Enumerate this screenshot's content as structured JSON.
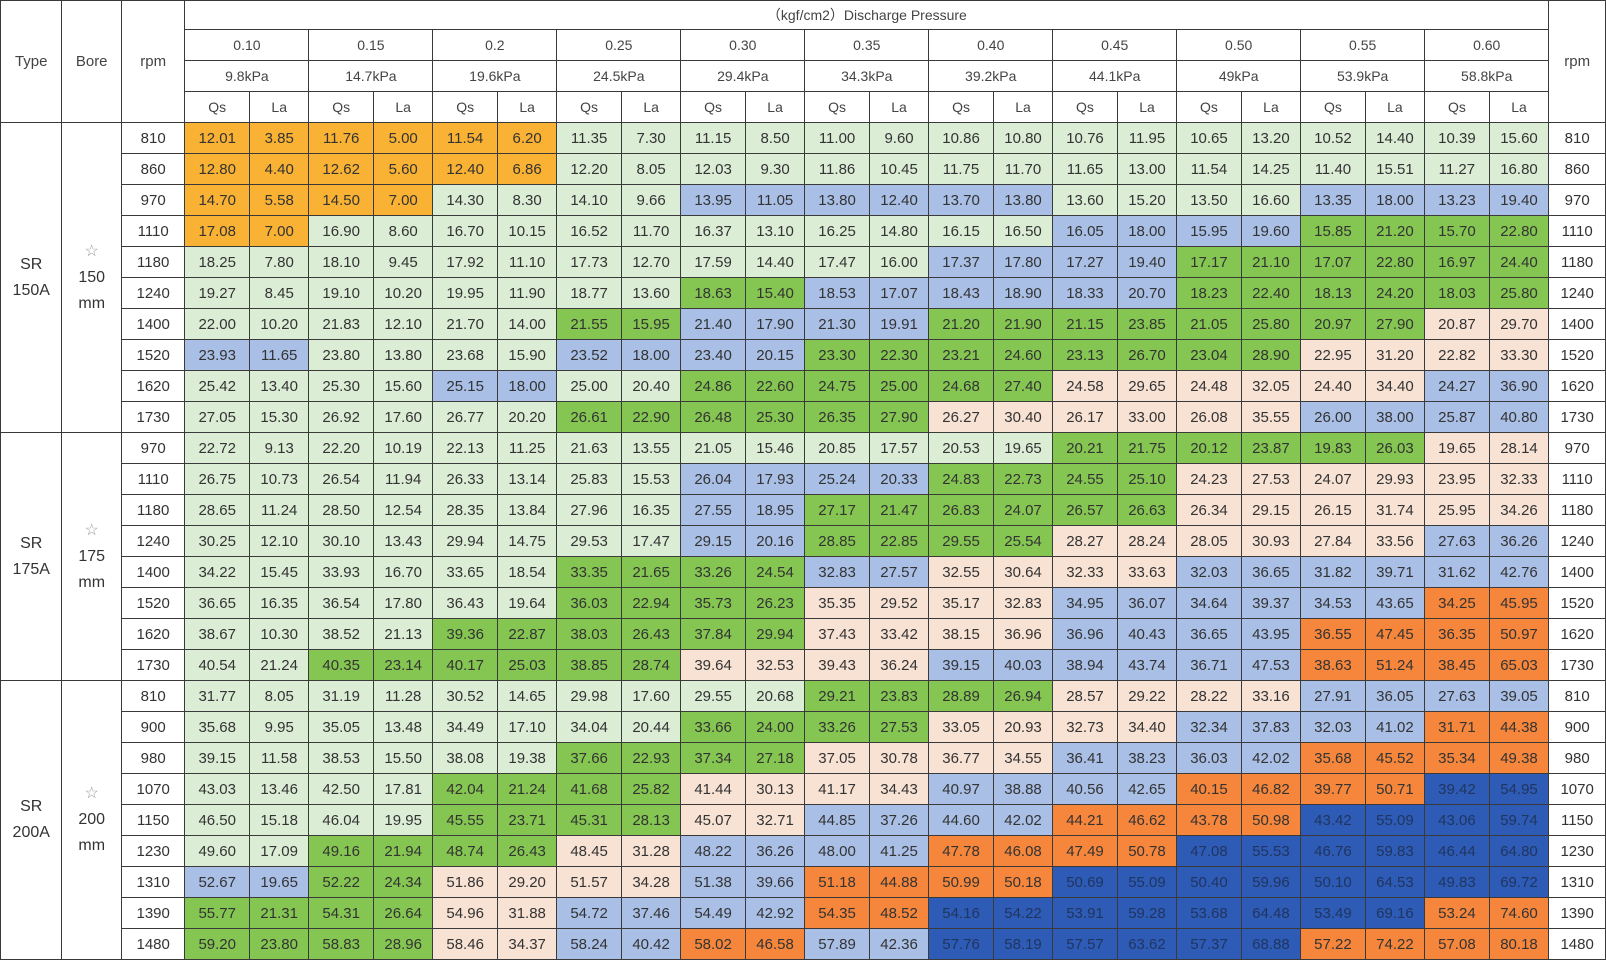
{
  "header": {
    "type_label": "Type",
    "bore_label": "Bore",
    "rpm_label": "rpm",
    "rpm_right_label": "rpm",
    "discharge_label": "（kgf/cm2）Discharge Pressure",
    "qs_label": "Qs",
    "la_label": "La",
    "pressures": [
      {
        "kgf": "0.10",
        "kpa": "9.8kPa"
      },
      {
        "kgf": "0.15",
        "kpa": "14.7kPa"
      },
      {
        "kgf": "0.2",
        "kpa": "19.6kPa"
      },
      {
        "kgf": "0.25",
        "kpa": "24.5kPa"
      },
      {
        "kgf": "0.30",
        "kpa": "29.4kPa"
      },
      {
        "kgf": "0.35",
        "kpa": "34.3kPa"
      },
      {
        "kgf": "0.40",
        "kpa": "39.2kPa"
      },
      {
        "kgf": "0.45",
        "kpa": "44.1kPa"
      },
      {
        "kgf": "0.50",
        "kpa": "49kPa"
      },
      {
        "kgf": "0.55",
        "kpa": "53.9kPa"
      },
      {
        "kgf": "0.60",
        "kpa": "58.8kPa"
      }
    ]
  },
  "colors": {
    "Y": "#f9b233",
    "L": "#dcedd6",
    "G": "#85c652",
    "B": "#a9bfe6",
    "P": "#f8e2d4",
    "O": "#f5863c",
    "D": "#2e5bb6"
  },
  "groups": [
    {
      "type": [
        "SR",
        "150A"
      ],
      "star": "☆",
      "bore": [
        "150",
        "mm"
      ],
      "rows": [
        {
          "rpm": "810",
          "c": "YYYYYYLLLLLLLLLLLLLLLL",
          "v": [
            "12.01",
            "3.85",
            "11.76",
            "5.00",
            "11.54",
            "6.20",
            "11.35",
            "7.30",
            "11.15",
            "8.50",
            "11.00",
            "9.60",
            "10.86",
            "10.80",
            "10.76",
            "11.95",
            "10.65",
            "13.20",
            "10.52",
            "14.40",
            "10.39",
            "15.60"
          ]
        },
        {
          "rpm": "860",
          "c": "YYYYYYLLLLLLLLLLLLLLLL",
          "v": [
            "12.80",
            "4.40",
            "12.62",
            "5.60",
            "12.40",
            "6.86",
            "12.20",
            "8.05",
            "12.03",
            "9.30",
            "11.86",
            "10.45",
            "11.75",
            "11.70",
            "11.65",
            "13.00",
            "11.54",
            "14.25",
            "11.40",
            "15.51",
            "11.27",
            "16.80"
          ]
        },
        {
          "rpm": "970",
          "c": "YYYYLLLLBBBBBBLLLLBBBB",
          "v": [
            "14.70",
            "5.58",
            "14.50",
            "7.00",
            "14.30",
            "8.30",
            "14.10",
            "9.66",
            "13.95",
            "11.05",
            "13.80",
            "12.40",
            "13.70",
            "13.80",
            "13.60",
            "15.20",
            "13.50",
            "16.60",
            "13.35",
            "18.00",
            "13.23",
            "19.40"
          ]
        },
        {
          "rpm": "1110",
          "c": "YYLLLLLLLLLLLLBBBBGGGG",
          "v": [
            "17.08",
            "7.00",
            "16.90",
            "8.60",
            "16.70",
            "10.15",
            "16.52",
            "11.70",
            "16.37",
            "13.10",
            "16.25",
            "14.80",
            "16.15",
            "16.50",
            "16.05",
            "18.00",
            "15.95",
            "19.60",
            "15.85",
            "21.20",
            "15.70",
            "22.80"
          ]
        },
        {
          "rpm": "1180",
          "c": "LLLLLLLLLLLLBBBBGGGGGG",
          "v": [
            "18.25",
            "7.80",
            "18.10",
            "9.45",
            "17.92",
            "11.10",
            "17.73",
            "12.70",
            "17.59",
            "14.40",
            "17.47",
            "16.00",
            "17.37",
            "17.80",
            "17.27",
            "19.40",
            "17.17",
            "21.10",
            "17.07",
            "22.80",
            "16.97",
            "24.40"
          ]
        },
        {
          "rpm": "1240",
          "c": "LLLLLLLLGGBBBBBBGGGGGG",
          "v": [
            "19.27",
            "8.45",
            "19.10",
            "10.20",
            "19.95",
            "11.90",
            "18.77",
            "13.60",
            "18.63",
            "15.40",
            "18.53",
            "17.07",
            "18.43",
            "18.90",
            "18.33",
            "20.70",
            "18.23",
            "22.40",
            "18.13",
            "24.20",
            "18.03",
            "25.80"
          ]
        },
        {
          "rpm": "1400",
          "c": "LLLLLLGGBBBBGGGGGGGGPP",
          "v": [
            "22.00",
            "10.20",
            "21.83",
            "12.10",
            "21.70",
            "14.00",
            "21.55",
            "15.95",
            "21.40",
            "17.90",
            "21.30",
            "19.91",
            "21.20",
            "21.90",
            "21.15",
            "23.85",
            "21.05",
            "25.80",
            "20.97",
            "27.90",
            "20.87",
            "29.70"
          ]
        },
        {
          "rpm": "1520",
          "c": "BBLLLLBBBBGGGGGGGGPPPP",
          "v": [
            "23.93",
            "11.65",
            "23.80",
            "13.80",
            "23.68",
            "15.90",
            "23.52",
            "18.00",
            "23.40",
            "20.15",
            "23.30",
            "22.30",
            "23.21",
            "24.60",
            "23.13",
            "26.70",
            "23.04",
            "28.90",
            "22.95",
            "31.20",
            "22.82",
            "33.30"
          ]
        },
        {
          "rpm": "1620",
          "c": "LLLLBBLLGGGGGGPPPPPPBB",
          "v": [
            "25.42",
            "13.40",
            "25.30",
            "15.60",
            "25.15",
            "18.00",
            "25.00",
            "20.40",
            "24.86",
            "22.60",
            "24.75",
            "25.00",
            "24.68",
            "27.40",
            "24.58",
            "29.65",
            "24.48",
            "32.05",
            "24.40",
            "34.40",
            "24.27",
            "36.90"
          ]
        },
        {
          "rpm": "1730",
          "c": "LLLLLLGGGGGGPPPPPPBBBB",
          "v": [
            "27.05",
            "15.30",
            "26.92",
            "17.60",
            "26.77",
            "20.20",
            "26.61",
            "22.90",
            "26.48",
            "25.30",
            "26.35",
            "27.90",
            "26.27",
            "30.40",
            "26.17",
            "33.00",
            "26.08",
            "35.55",
            "26.00",
            "38.00",
            "25.87",
            "40.80"
          ]
        }
      ]
    },
    {
      "type": [
        "SR",
        "175A"
      ],
      "star": "☆",
      "bore": [
        "175",
        "mm"
      ],
      "rows": [
        {
          "rpm": "970",
          "c": "LLLLLLLLLLLLLLGGGGGGPP",
          "v": [
            "22.72",
            "9.13",
            "22.20",
            "10.19",
            "22.13",
            "11.25",
            "21.63",
            "13.55",
            "21.05",
            "15.46",
            "20.85",
            "17.57",
            "20.53",
            "19.65",
            "20.21",
            "21.75",
            "20.12",
            "23.87",
            "19.83",
            "26.03",
            "19.65",
            "28.14"
          ]
        },
        {
          "rpm": "1110",
          "c": "LLLLLLLLBBBBGGGGPPPPPP",
          "v": [
            "26.75",
            "10.73",
            "26.54",
            "11.94",
            "26.33",
            "13.14",
            "25.83",
            "15.53",
            "26.04",
            "17.93",
            "25.24",
            "20.33",
            "24.83",
            "22.73",
            "24.55",
            "25.10",
            "24.23",
            "27.53",
            "24.07",
            "29.93",
            "23.95",
            "32.33"
          ]
        },
        {
          "rpm": "1180",
          "c": "LLLLLLLLBBGGGGGGPPPPPP",
          "v": [
            "28.65",
            "11.24",
            "28.50",
            "12.54",
            "28.35",
            "13.84",
            "27.96",
            "16.35",
            "27.55",
            "18.95",
            "27.17",
            "21.47",
            "26.83",
            "24.07",
            "26.57",
            "26.63",
            "26.34",
            "29.15",
            "26.15",
            "31.74",
            "25.95",
            "34.26"
          ]
        },
        {
          "rpm": "1240",
          "c": "LLLLLLLLBBGGGGPPPPPPBB",
          "v": [
            "30.25",
            "12.10",
            "30.10",
            "13.43",
            "29.94",
            "14.75",
            "29.53",
            "17.47",
            "29.15",
            "20.16",
            "28.85",
            "22.85",
            "29.55",
            "25.54",
            "28.27",
            "28.24",
            "28.05",
            "30.93",
            "27.84",
            "33.56",
            "27.63",
            "36.26"
          ]
        },
        {
          "rpm": "1400",
          "c": "LLLLLLGGGGBBPPPPBBBBBB",
          "v": [
            "34.22",
            "15.45",
            "33.93",
            "16.70",
            "33.65",
            "18.54",
            "33.35",
            "21.65",
            "33.26",
            "24.54",
            "32.83",
            "27.57",
            "32.55",
            "30.64",
            "32.33",
            "33.63",
            "32.03",
            "36.65",
            "31.82",
            "39.71",
            "31.62",
            "42.76"
          ]
        },
        {
          "rpm": "1520",
          "c": "LLLLLLGGGGPPPPBBBBBBOO",
          "v": [
            "36.65",
            "16.35",
            "36.54",
            "17.80",
            "36.43",
            "19.64",
            "36.03",
            "22.94",
            "35.73",
            "26.23",
            "35.35",
            "29.52",
            "35.17",
            "32.83",
            "34.95",
            "36.07",
            "34.64",
            "39.37",
            "34.53",
            "43.65",
            "34.25",
            "45.95"
          ]
        },
        {
          "rpm": "1620",
          "c": "LLLLGGGGGGPPPPBBBBOOOO",
          "v": [
            "38.67",
            "10.30",
            "38.52",
            "21.13",
            "39.36",
            "22.87",
            "38.03",
            "26.43",
            "37.84",
            "29.94",
            "37.43",
            "33.42",
            "38.15",
            "36.96",
            "36.96",
            "40.43",
            "36.65",
            "43.95",
            "36.55",
            "47.45",
            "36.35",
            "50.97"
          ]
        },
        {
          "rpm": "1730",
          "c": "LLGGGGGGPPPPBBBBBBOOOO",
          "v": [
            "40.54",
            "21.24",
            "40.35",
            "23.14",
            "40.17",
            "25.03",
            "38.85",
            "28.74",
            "39.64",
            "32.53",
            "39.43",
            "36.24",
            "39.15",
            "40.03",
            "38.94",
            "43.74",
            "36.71",
            "47.53",
            "38.63",
            "51.24",
            "38.45",
            "65.03"
          ]
        }
      ]
    },
    {
      "type": [
        "SR",
        "200A"
      ],
      "star": "☆",
      "bore": [
        "200",
        "mm"
      ],
      "rows": [
        {
          "rpm": "810",
          "c": "LLLLLLLLLLGGGGPPPPBBBB",
          "v": [
            "31.77",
            "8.05",
            "31.19",
            "11.28",
            "30.52",
            "14.65",
            "29.98",
            "17.60",
            "29.55",
            "20.68",
            "29.21",
            "23.83",
            "28.89",
            "26.94",
            "28.57",
            "29.22",
            "28.22",
            "33.16",
            "27.91",
            "36.05",
            "27.63",
            "39.05"
          ]
        },
        {
          "rpm": "900",
          "c": "LLLLLLLLGGGGPPPPBBBBOO",
          "v": [
            "35.68",
            "9.95",
            "35.05",
            "13.48",
            "34.49",
            "17.10",
            "34.04",
            "20.44",
            "33.66",
            "24.00",
            "33.26",
            "27.53",
            "33.05",
            "20.93",
            "32.73",
            "34.40",
            "32.34",
            "37.83",
            "32.03",
            "41.02",
            "31.71",
            "44.38"
          ]
        },
        {
          "rpm": "980",
          "c": "LLLLLLGGGGPPPPBBBBOOOO",
          "v": [
            "39.15",
            "11.58",
            "38.53",
            "15.50",
            "38.08",
            "19.38",
            "37.66",
            "22.93",
            "37.34",
            "27.18",
            "37.05",
            "30.78",
            "36.77",
            "34.55",
            "36.41",
            "38.23",
            "36.03",
            "42.02",
            "35.68",
            "45.52",
            "35.34",
            "49.38"
          ]
        },
        {
          "rpm": "1070",
          "c": "LLLLGGGGPPPPBBBBOOOODD",
          "v": [
            "43.03",
            "13.46",
            "42.50",
            "17.81",
            "42.04",
            "21.24",
            "41.68",
            "25.82",
            "41.44",
            "30.13",
            "41.17",
            "34.43",
            "40.97",
            "38.88",
            "40.56",
            "42.65",
            "40.15",
            "46.82",
            "39.77",
            "50.71",
            "39.42",
            "54.95"
          ]
        },
        {
          "rpm": "1150",
          "c": "LLLLGGGGPPBBBBOOOODDDD",
          "v": [
            "46.50",
            "15.18",
            "46.04",
            "19.95",
            "45.55",
            "23.71",
            "45.31",
            "28.13",
            "45.07",
            "32.71",
            "44.85",
            "37.26",
            "44.60",
            "42.02",
            "44.21",
            "46.62",
            "43.78",
            "50.98",
            "43.42",
            "55.09",
            "43.06",
            "59.74"
          ]
        },
        {
          "rpm": "1230",
          "c": "LLGGGGPPBBBBOOOODDDDDD",
          "v": [
            "49.60",
            "17.09",
            "49.16",
            "21.94",
            "48.74",
            "26.43",
            "48.45",
            "31.28",
            "48.22",
            "36.26",
            "48.00",
            "41.25",
            "47.78",
            "46.08",
            "47.49",
            "50.78",
            "47.08",
            "55.53",
            "46.76",
            "59.83",
            "46.44",
            "64.80"
          ]
        },
        {
          "rpm": "1310",
          "c": "BBGGPPPPBBOOOODDDDDDDD",
          "v": [
            "52.67",
            "19.65",
            "52.22",
            "24.34",
            "51.86",
            "29.20",
            "51.57",
            "34.28",
            "51.38",
            "39.66",
            "51.18",
            "44.88",
            "50.99",
            "50.18",
            "50.69",
            "55.09",
            "50.40",
            "59.96",
            "50.10",
            "64.53",
            "49.83",
            "69.72"
          ]
        },
        {
          "rpm": "1390",
          "c": "GGGGPPBBBBOODDDDDDDDOO",
          "v": [
            "55.77",
            "21.31",
            "54.31",
            "26.64",
            "54.96",
            "31.88",
            "54.72",
            "37.46",
            "54.49",
            "42.92",
            "54.35",
            "48.52",
            "54.16",
            "54.22",
            "53.91",
            "59.28",
            "53.68",
            "64.48",
            "53.49",
            "69.16",
            "53.24",
            "74.60"
          ]
        },
        {
          "rpm": "1480",
          "c": "GGGGPPBBOOBBDDDDDDOOOO",
          "v": [
            "59.20",
            "23.80",
            "58.83",
            "28.96",
            "58.46",
            "34.37",
            "58.24",
            "40.42",
            "58.02",
            "46.58",
            "57.89",
            "42.36",
            "57.76",
            "58.19",
            "57.57",
            "63.62",
            "57.37",
            "68.88",
            "57.22",
            "74.22",
            "57.08",
            "80.18"
          ]
        }
      ]
    }
  ]
}
